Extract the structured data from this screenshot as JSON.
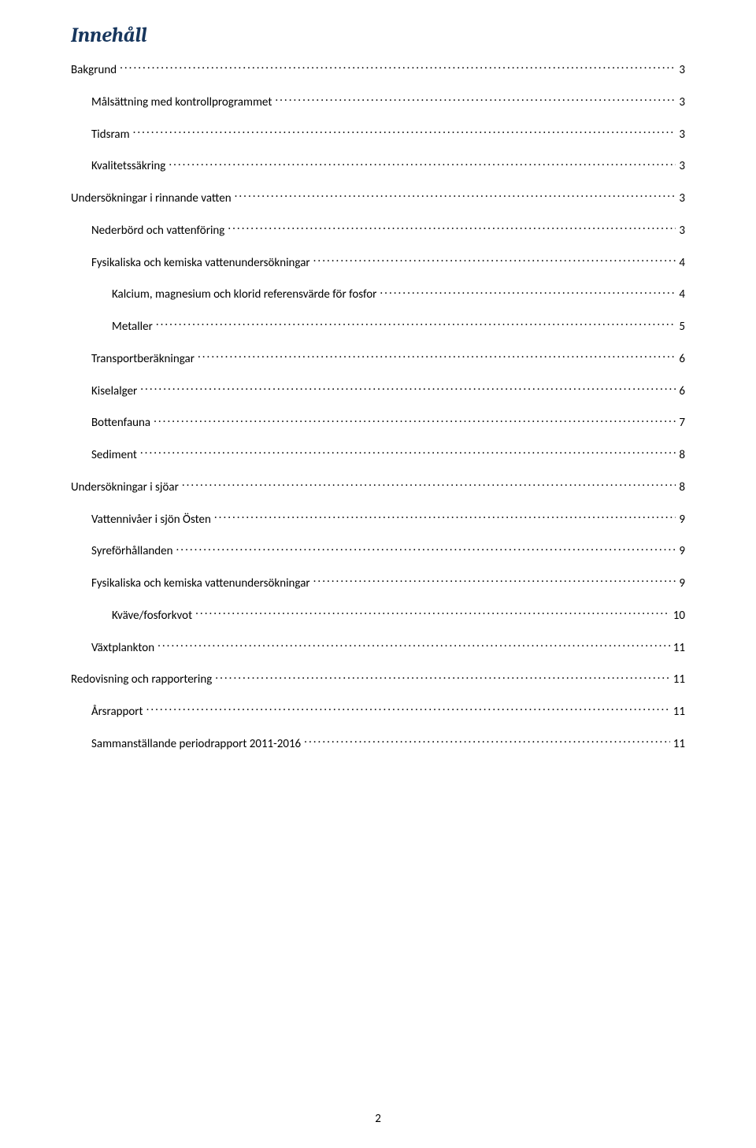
{
  "colors": {
    "title_color": "#17365d",
    "text_color": "#000000",
    "background": "#ffffff",
    "leader_color": "#000000"
  },
  "typography": {
    "title_font": "Cambria",
    "title_fontsize_pt": 20,
    "title_style": "italic bold",
    "body_font": "Calibri",
    "body_fontsize_pt": 11
  },
  "title": "Innehåll",
  "page_number": "2",
  "toc": {
    "items": [
      {
        "label": "Bakgrund",
        "page": "3",
        "level": 0
      },
      {
        "label": "Målsättning med kontrollprogrammet",
        "page": "3",
        "level": 1
      },
      {
        "label": "Tidsram",
        "page": "3",
        "level": 1
      },
      {
        "label": "Kvalitetssäkring",
        "page": "3",
        "level": 1
      },
      {
        "label": "Undersökningar i rinnande vatten",
        "page": "3",
        "level": 0
      },
      {
        "label": "Nederbörd och vattenföring",
        "page": "3",
        "level": 1
      },
      {
        "label": "Fysikaliska och kemiska vattenundersökningar",
        "page": "4",
        "level": 1
      },
      {
        "label": "Kalcium, magnesium och klorid referensvärde för fosfor",
        "page": "4",
        "level": 2
      },
      {
        "label": "Metaller",
        "page": "5",
        "level": 2
      },
      {
        "label": "Transportberäkningar",
        "page": "6",
        "level": 1
      },
      {
        "label": "Kiselalger",
        "page": "6",
        "level": 1
      },
      {
        "label": "Bottenfauna",
        "page": "7",
        "level": 1
      },
      {
        "label": "Sediment",
        "page": "8",
        "level": 1
      },
      {
        "label": "Undersökningar i sjöar",
        "page": "8",
        "level": 0
      },
      {
        "label": "Vattennivåer i sjön Östen",
        "page": "9",
        "level": 1
      },
      {
        "label": "Syreförhållanden",
        "page": "9",
        "level": 1
      },
      {
        "label": "Fysikaliska och kemiska vattenundersökningar",
        "page": "9",
        "level": 1
      },
      {
        "label": "Kväve/fosforkvot",
        "page": "10",
        "level": 2
      },
      {
        "label": "Växtplankton",
        "page": "11",
        "level": 1
      },
      {
        "label": "Redovisning och rapportering",
        "page": "11",
        "level": 0
      },
      {
        "label": "Årsrapport",
        "page": "11",
        "level": 1
      },
      {
        "label": "Sammanställande periodrapport 2011-2016",
        "page": "11",
        "level": 1
      }
    ]
  }
}
